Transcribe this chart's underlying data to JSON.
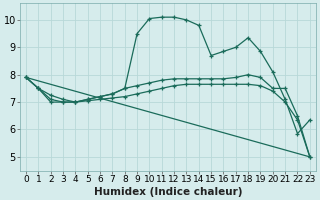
{
  "xlabel": "Humidex (Indice chaleur)",
  "ylabel": "",
  "xlim": [
    -0.5,
    23.5
  ],
  "ylim": [
    4.5,
    10.6
  ],
  "yticks": [
    5,
    6,
    7,
    8,
    9,
    10
  ],
  "xticks": [
    0,
    1,
    2,
    3,
    4,
    5,
    6,
    7,
    8,
    9,
    10,
    11,
    12,
    13,
    14,
    15,
    16,
    17,
    18,
    19,
    20,
    21,
    22,
    23
  ],
  "bg_color": "#d6ecec",
  "grid_color": "#b8d8d8",
  "line_color": "#1a6b5a",
  "line1_x": [
    0,
    1,
    2,
    3,
    4,
    5,
    6,
    7,
    8,
    9,
    10,
    11,
    12,
    13,
    14,
    15,
    16,
    17,
    18,
    19,
    20,
    21,
    22,
    23
  ],
  "line1_y": [
    7.9,
    7.5,
    7.0,
    7.0,
    7.0,
    7.1,
    7.2,
    7.3,
    7.5,
    9.5,
    10.05,
    10.1,
    10.1,
    10.0,
    9.8,
    8.7,
    8.85,
    9.0,
    9.35,
    8.85,
    8.1,
    7.1,
    5.85,
    6.35
  ],
  "line2_x": [
    0,
    1,
    2,
    3,
    4,
    5,
    6,
    7,
    8,
    9,
    10,
    11,
    12,
    13,
    14,
    15,
    16,
    17,
    18,
    19,
    20,
    21,
    22,
    23
  ],
  "line2_y": [
    7.9,
    7.5,
    7.25,
    7.1,
    7.0,
    7.1,
    7.2,
    7.3,
    7.5,
    7.6,
    7.7,
    7.8,
    7.85,
    7.85,
    7.85,
    7.85,
    7.85,
    7.9,
    8.0,
    7.9,
    7.5,
    7.5,
    6.5,
    5.0
  ],
  "line3_x": [
    0,
    1,
    2,
    3,
    4,
    5,
    6,
    7,
    8,
    9,
    10,
    11,
    12,
    13,
    14,
    15,
    16,
    17,
    18,
    19,
    20,
    21,
    22,
    23
  ],
  "line3_y": [
    7.9,
    7.5,
    7.1,
    7.0,
    7.0,
    7.05,
    7.1,
    7.15,
    7.2,
    7.3,
    7.4,
    7.5,
    7.6,
    7.65,
    7.65,
    7.65,
    7.65,
    7.65,
    7.65,
    7.6,
    7.4,
    7.0,
    6.35,
    5.0
  ],
  "line4_x": [
    0,
    23
  ],
  "line4_y": [
    7.9,
    5.0
  ],
  "tick_fontsize": 6.5,
  "xlabel_fontsize": 7.5
}
